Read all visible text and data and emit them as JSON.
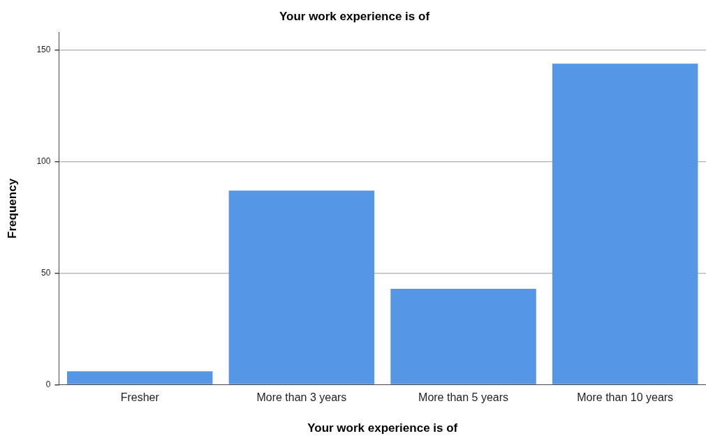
{
  "chart_data": {
    "type": "bar",
    "title": "Your work experience is of",
    "xlabel": "Your work experience is of",
    "ylabel": "Frequency",
    "categories": [
      "Fresher",
      "More than 3 years",
      "More than 5 years",
      "More than 10 years"
    ],
    "values": [
      6,
      87,
      43,
      144
    ],
    "color": "#5596e6",
    "ylim": [
      0,
      158
    ],
    "yticks": [
      0,
      50,
      100,
      150
    ],
    "grid": "y",
    "legend": false
  }
}
